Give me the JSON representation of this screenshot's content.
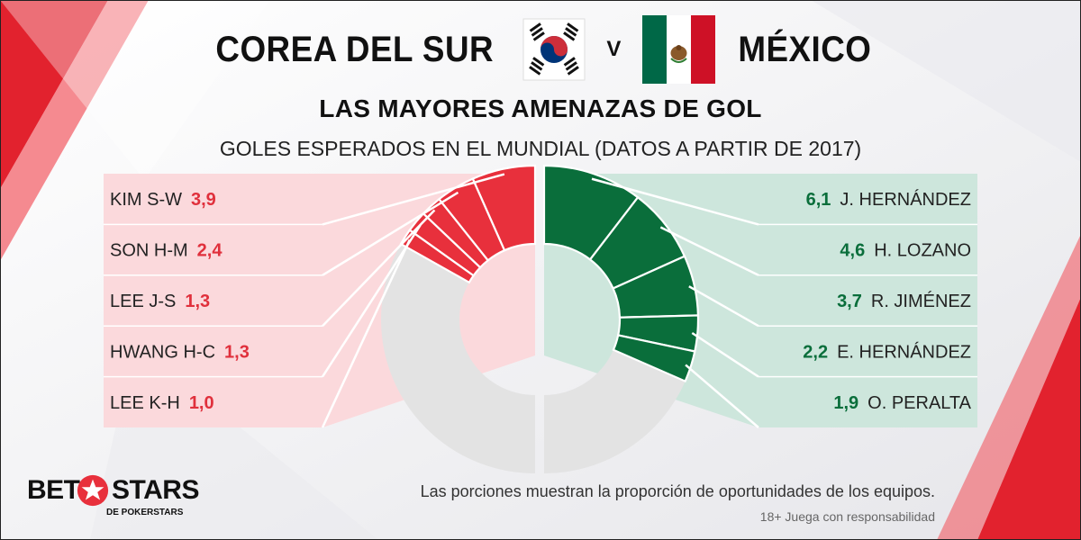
{
  "header": {
    "team_left": "COREA DEL SUR",
    "vs": "V",
    "team_right": "MÉXICO"
  },
  "colors": {
    "korea_accent": "#e8303c",
    "korea_band": "#fbd9dc",
    "mexico_accent": "#0a6e3b",
    "mexico_band": "#cde6dc",
    "other_slice": "#e3e3e3"
  },
  "chart_data": {
    "type": "donut",
    "title": "LAS MAYORES AMENAZAS DE GOL",
    "subtitle": "GOLES ESPERADOS EN EL MUNDIAL (DATOS A PARTIR DE 2017)",
    "series": [
      {
        "name": "COREA DEL SUR",
        "players": [
          {
            "label": "KIM S-W",
            "value": 3.9,
            "display": "3,9"
          },
          {
            "label": "SON H-M",
            "value": 2.4,
            "display": "2,4"
          },
          {
            "label": "LEE J-S",
            "value": 1.3,
            "display": "1,3"
          },
          {
            "label": "HWANG H-C",
            "value": 1.3,
            "display": "1,3"
          },
          {
            "label": "LEE K-H",
            "value": 1.0,
            "display": "1,0"
          }
        ]
      },
      {
        "name": "MÉXICO",
        "players": [
          {
            "label": "J. HERNÁNDEZ",
            "value": 6.1,
            "display": "6,1"
          },
          {
            "label": "H. LOZANO",
            "value": 4.6,
            "display": "4,6"
          },
          {
            "label": "R. JIMÉNEZ",
            "value": 3.7,
            "display": "3,7"
          },
          {
            "label": "E. HERNÁNDEZ",
            "value": 2.2,
            "display": "2,2"
          },
          {
            "label": "O. PERALTA",
            "value": 1.9,
            "display": "1,9"
          }
        ]
      }
    ]
  },
  "footer": {
    "note": "Las porciones muestran la proporción de oportunidades de los equipos.",
    "disclaimer": "18+ Juega con responsabilidad"
  },
  "logo": {
    "bet": "BET",
    "stars": "STARS",
    "sub": "DE POKERSTARS"
  },
  "icons": [
    "korea-flag-icon",
    "mexico-flag-icon",
    "star-icon"
  ]
}
